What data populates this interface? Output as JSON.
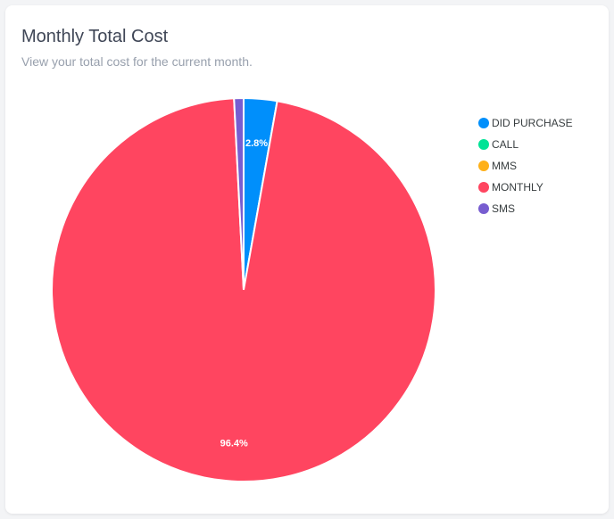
{
  "card": {
    "title": "Monthly Total Cost",
    "subtitle": "View your total cost for the current month."
  },
  "chart_data": {
    "type": "pie",
    "title": "Monthly Total Cost",
    "subtitle": "View your total cost for the current month.",
    "legend_position": "right",
    "start_angle_deg": 0,
    "slices": [
      {
        "name": "DID PURCHASE",
        "value": 2.8,
        "label": "2.8%",
        "color": "#008ffb"
      },
      {
        "name": "CALL",
        "value": 0,
        "label": "",
        "color": "#00e396"
      },
      {
        "name": "MMS",
        "value": 0,
        "label": "",
        "color": "#feb019"
      },
      {
        "name": "MONTHLY",
        "value": 96.4,
        "label": "96.4%",
        "color": "#ff4560"
      },
      {
        "name": "SMS",
        "value": 0.8,
        "label": "",
        "color": "#775dd0"
      }
    ]
  }
}
